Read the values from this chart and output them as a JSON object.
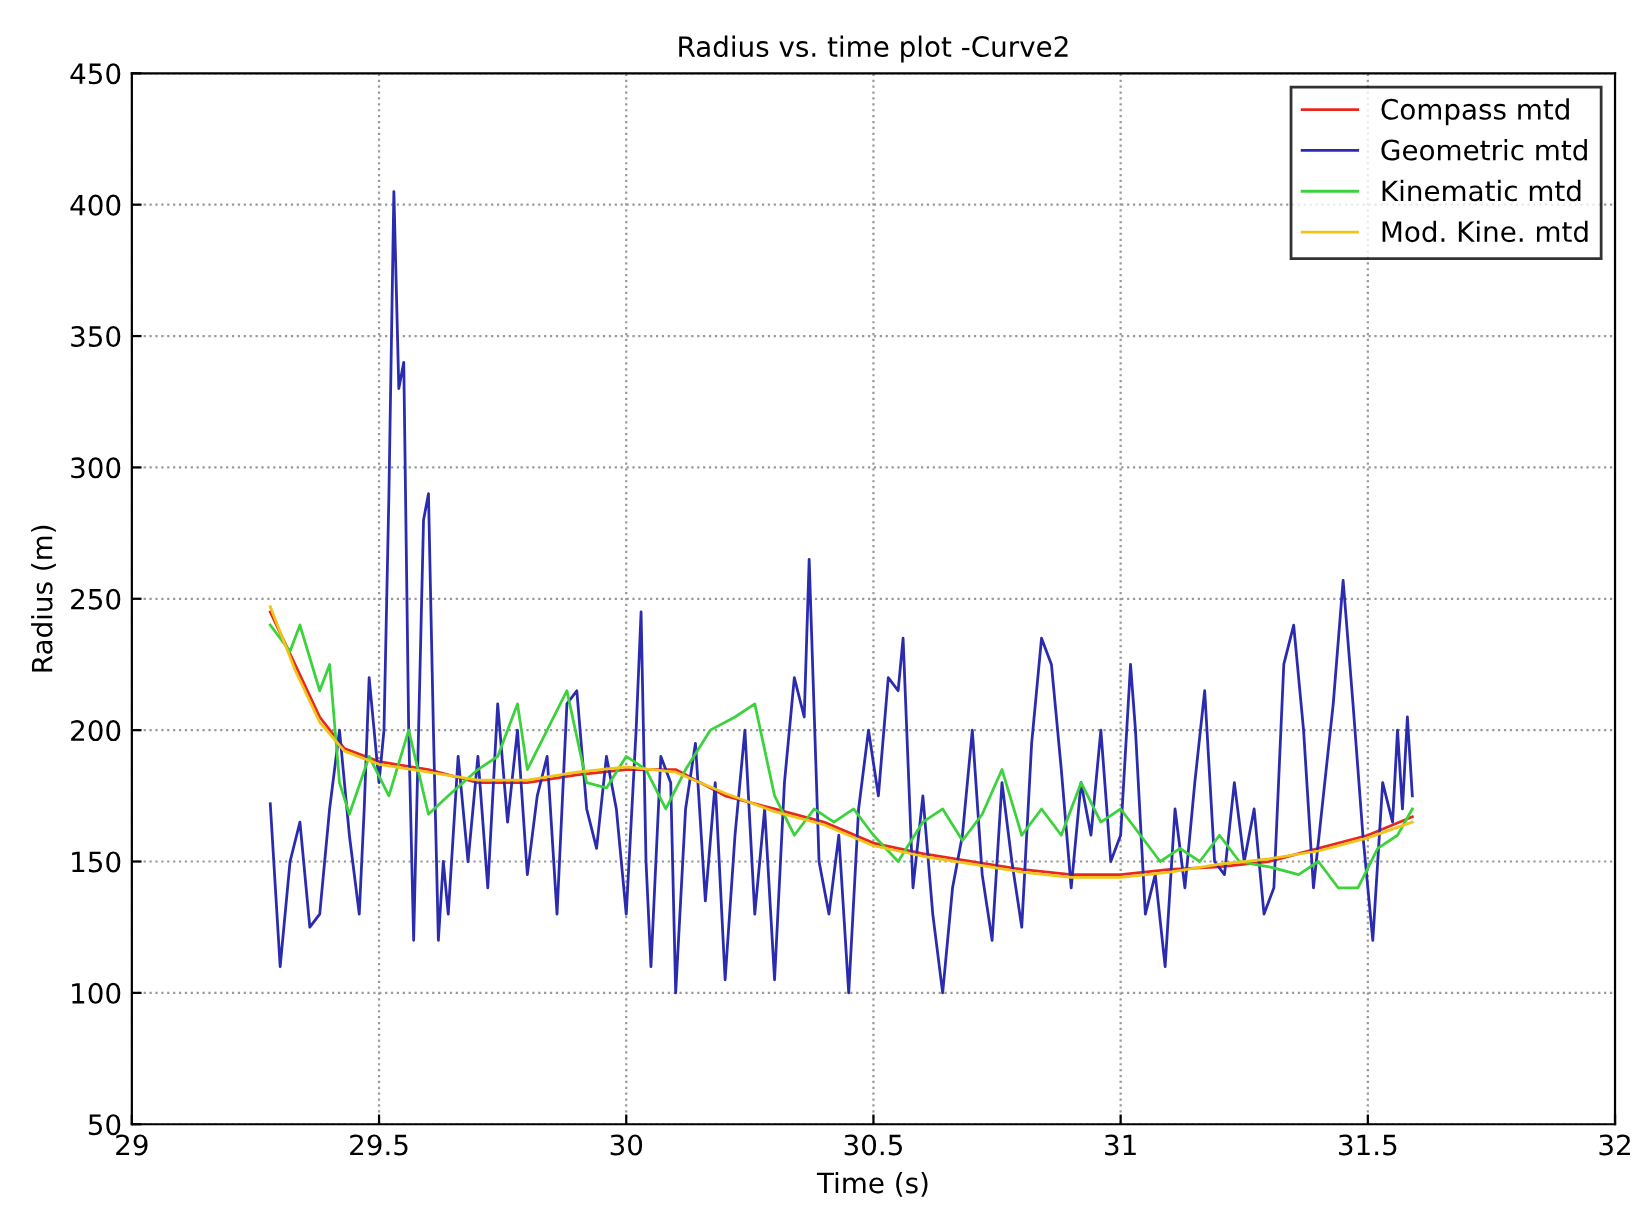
{
  "chart_data": {
    "type": "line",
    "title": "Radius vs. time plot -Curve2",
    "xlabel": "Time (s)",
    "ylabel": "Radius (m)",
    "xlim": [
      29,
      32
    ],
    "xticks": [
      29,
      29.5,
      30,
      30.5,
      31,
      31.5,
      32
    ],
    "ylim": [
      50,
      450
    ],
    "yticks": [
      50,
      100,
      150,
      200,
      250,
      300,
      350,
      400,
      450
    ],
    "grid": true,
    "legend": "top right",
    "line_style": "solid",
    "marker": "none",
    "series": [
      {
        "name": "Compass mtd",
        "color": "#e8281e",
        "x": [
          29.28,
          29.33,
          29.38,
          29.43,
          29.5,
          29.6,
          29.7,
          29.8,
          29.9,
          30.0,
          30.1,
          30.2,
          30.3,
          30.4,
          30.5,
          30.6,
          30.7,
          30.8,
          30.9,
          31.0,
          31.1,
          31.2,
          31.3,
          31.4,
          31.5,
          31.59
        ],
        "values": [
          245,
          225,
          205,
          193,
          188,
          185,
          180,
          180,
          183,
          185,
          185,
          175,
          170,
          165,
          157,
          153,
          150,
          147,
          145,
          145,
          147,
          148,
          150,
          155,
          160,
          167
        ]
      },
      {
        "name": "Geometric mtd",
        "color": "#2b2bb0",
        "x": [
          29.28,
          29.3,
          29.32,
          29.34,
          29.36,
          29.38,
          29.4,
          29.42,
          29.44,
          29.46,
          29.47,
          29.48,
          29.5,
          29.51,
          29.52,
          29.53,
          29.54,
          29.55,
          29.56,
          29.57,
          29.58,
          29.59,
          29.6,
          29.61,
          29.62,
          29.63,
          29.64,
          29.66,
          29.68,
          29.7,
          29.72,
          29.74,
          29.76,
          29.78,
          29.8,
          29.82,
          29.84,
          29.86,
          29.88,
          29.9,
          29.92,
          29.94,
          29.96,
          29.98,
          30.0,
          30.02,
          30.03,
          30.04,
          30.05,
          30.07,
          30.09,
          30.1,
          30.12,
          30.14,
          30.16,
          30.18,
          30.2,
          30.22,
          30.24,
          30.26,
          30.28,
          30.3,
          30.32,
          30.34,
          30.36,
          30.37,
          30.39,
          30.41,
          30.43,
          30.45,
          30.47,
          30.49,
          30.51,
          30.53,
          30.55,
          30.56,
          30.58,
          30.6,
          30.62,
          30.64,
          30.66,
          30.68,
          30.7,
          30.72,
          30.74,
          30.76,
          30.78,
          30.8,
          30.82,
          30.84,
          30.86,
          30.88,
          30.9,
          30.92,
          30.94,
          30.96,
          30.98,
          31.0,
          31.02,
          31.03,
          31.05,
          31.07,
          31.09,
          31.11,
          31.13,
          31.15,
          31.17,
          31.19,
          31.21,
          31.23,
          31.25,
          31.27,
          31.29,
          31.31,
          31.33,
          31.35,
          31.37,
          31.39,
          31.41,
          31.43,
          31.45,
          31.47,
          31.49,
          31.51,
          31.53,
          31.55,
          31.56,
          31.57,
          31.58,
          31.59
        ],
        "values": [
          172,
          110,
          150,
          165,
          125,
          130,
          170,
          200,
          160,
          130,
          170,
          220,
          180,
          200,
          290,
          405,
          330,
          340,
          200,
          120,
          200,
          280,
          290,
          200,
          120,
          150,
          130,
          190,
          150,
          190,
          140,
          210,
          165,
          200,
          145,
          175,
          190,
          130,
          210,
          215,
          170,
          155,
          190,
          170,
          130,
          200,
          245,
          150,
          110,
          190,
          180,
          100,
          170,
          195,
          135,
          180,
          105,
          160,
          200,
          130,
          170,
          105,
          180,
          220,
          205,
          265,
          150,
          130,
          160,
          100,
          170,
          200,
          175,
          220,
          215,
          235,
          140,
          175,
          130,
          100,
          140,
          160,
          200,
          145,
          120,
          180,
          150,
          125,
          195,
          235,
          225,
          185,
          140,
          180,
          160,
          200,
          150,
          160,
          225,
          200,
          130,
          145,
          110,
          170,
          140,
          180,
          215,
          150,
          145,
          180,
          150,
          170,
          130,
          140,
          225,
          240,
          200,
          140,
          175,
          210,
          257,
          210,
          160,
          120,
          180,
          165,
          200,
          170,
          205,
          175
        ]
      },
      {
        "name": "Kinematic mtd",
        "color": "#3cd23c",
        "x": [
          29.28,
          29.32,
          29.34,
          29.38,
          29.4,
          29.42,
          29.44,
          29.48,
          29.52,
          29.56,
          29.6,
          29.64,
          29.7,
          29.74,
          29.78,
          29.8,
          29.84,
          29.88,
          29.92,
          29.96,
          30.0,
          30.04,
          30.08,
          30.12,
          30.17,
          30.22,
          30.26,
          30.3,
          30.34,
          30.38,
          30.42,
          30.46,
          30.5,
          30.55,
          30.6,
          30.64,
          30.68,
          30.72,
          30.76,
          30.8,
          30.84,
          30.88,
          30.92,
          30.96,
          31.0,
          31.04,
          31.08,
          31.12,
          31.16,
          31.2,
          31.24,
          31.3,
          31.36,
          31.4,
          31.44,
          31.48,
          31.52,
          31.56,
          31.59
        ],
        "values": [
          240,
          230,
          240,
          215,
          225,
          180,
          168,
          190,
          175,
          200,
          168,
          175,
          185,
          190,
          210,
          185,
          200,
          215,
          180,
          178,
          190,
          185,
          170,
          185,
          200,
          205,
          210,
          175,
          160,
          170,
          165,
          170,
          160,
          150,
          165,
          170,
          158,
          168,
          185,
          160,
          170,
          160,
          180,
          165,
          170,
          160,
          150,
          155,
          150,
          160,
          150,
          148,
          145,
          150,
          140,
          140,
          155,
          160,
          170
        ]
      },
      {
        "name": "Mod. Kine. mtd",
        "color": "#f0c419",
        "x": [
          29.28,
          29.33,
          29.38,
          29.43,
          29.5,
          29.6,
          29.7,
          29.8,
          29.9,
          30.0,
          30.1,
          30.2,
          30.3,
          30.4,
          30.5,
          30.6,
          30.7,
          30.8,
          30.9,
          31.0,
          31.1,
          31.2,
          31.3,
          31.4,
          31.5,
          31.59
        ],
        "values": [
          247,
          223,
          203,
          192,
          187,
          184,
          181,
          181,
          184,
          186,
          184,
          176,
          169,
          164,
          156,
          152,
          149,
          146,
          144,
          144,
          146,
          149,
          151,
          154,
          159,
          165
        ]
      }
    ]
  }
}
